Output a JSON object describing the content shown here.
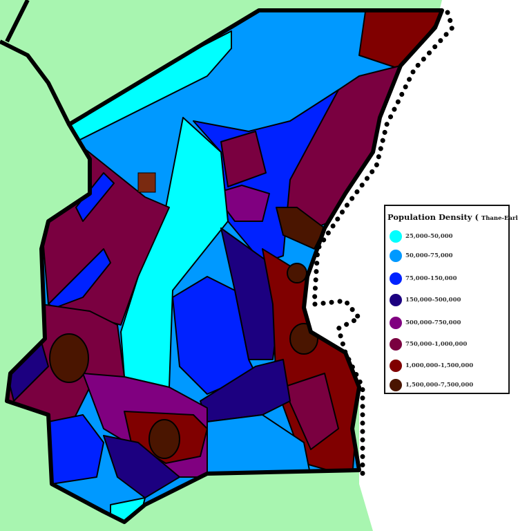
{
  "legend": {
    "title": "Population Density (",
    "subtitle": "Thane-Earldom",
    "title_close": ")",
    "items": [
      {
        "label": "25,000-50,000",
        "color": "#00ffff"
      },
      {
        "label": "50,000-75,000",
        "color": "#0099ff"
      },
      {
        "label": "75,000-150,000",
        "color": "#0022ff"
      },
      {
        "label": "150,000-500,000",
        "color": "#1c0080"
      },
      {
        "label": "500,000-750,000",
        "color": "#800080"
      },
      {
        "label": "750,000-1,000,000",
        "color": "#7a0040"
      },
      {
        "label": "1,000,000-1,500,000",
        "color": "#800000"
      },
      {
        "label": "1,500,000-7,500,000",
        "color": "#4a1500"
      }
    ]
  },
  "colors": {
    "land_outside": "#a8f5b0",
    "sea": "#ffffff",
    "border": "#000000"
  }
}
